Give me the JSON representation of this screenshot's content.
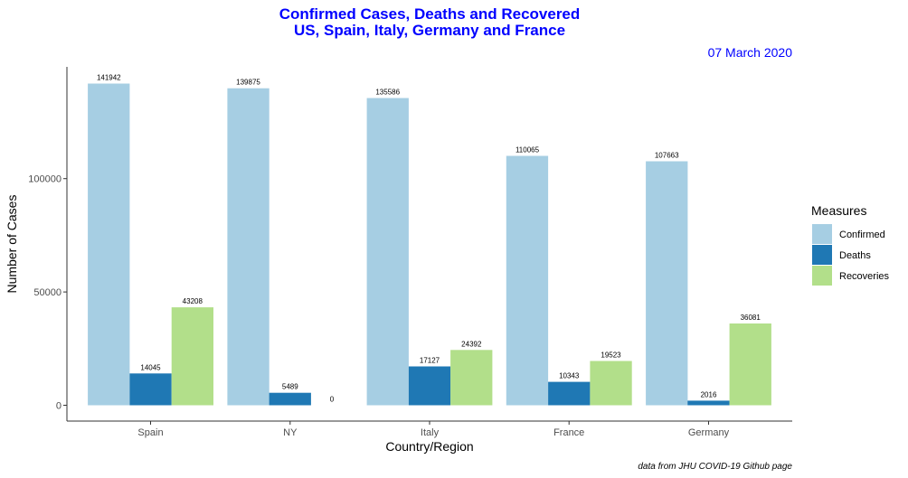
{
  "title_line1": "Confirmed Cases, Deaths and Recovered",
  "title_line2": "US, Spain, Italy, Germany and France",
  "date_label": "07 March 2020",
  "caption": "data from JHU COVID-19 Github page",
  "title_color": "#0000ff",
  "legend": {
    "title": "Measures",
    "items": [
      {
        "label": "Confirmed",
        "color": "#a6cee3"
      },
      {
        "label": "Deaths",
        "color": "#1f78b4"
      },
      {
        "label": "Recoveries",
        "color": "#b2df8a"
      }
    ]
  },
  "chart_data": {
    "type": "bar",
    "title": "Confirmed Cases, Deaths and Recovered",
    "xlabel": "Country/Region",
    "ylabel": "Number of Cases",
    "categories": [
      "Spain",
      "NY",
      "Italy",
      "France",
      "Germany"
    ],
    "series": [
      {
        "name": "Confirmed",
        "values": [
          141942,
          139875,
          135586,
          110065,
          107663
        ]
      },
      {
        "name": "Deaths",
        "values": [
          14045,
          5489,
          17127,
          10343,
          2016
        ]
      },
      {
        "name": "Recoveries",
        "values": [
          43208,
          0,
          24392,
          19523,
          36081
        ]
      }
    ],
    "ylim": [
      0,
      150000
    ],
    "yticks": [
      0,
      50000,
      100000
    ],
    "grid": false,
    "legend_position": "right"
  }
}
